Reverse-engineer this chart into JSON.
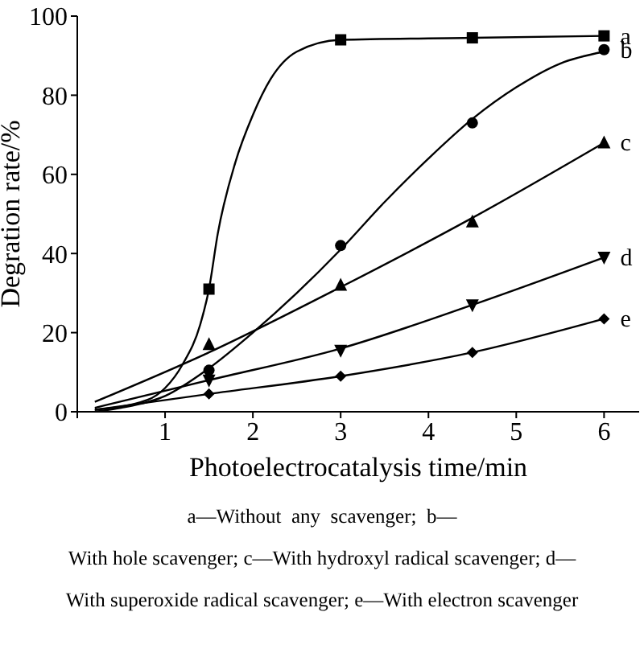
{
  "chart_data": {
    "type": "scatter",
    "xlabel": "Photoelectrocatalysis time/min",
    "ylabel": "Degration rate/%",
    "xlim": [
      0,
      6.4
    ],
    "xticks": [
      {
        "value": 0,
        "label": null
      },
      1,
      2,
      3,
      4,
      5,
      6
    ],
    "ylim": [
      0,
      100
    ],
    "yticks": [
      0,
      20,
      40,
      60,
      80,
      100
    ],
    "grid": false,
    "legend": false,
    "annotations": [
      "a—Without  any  scavenger;  b—",
      "With hole scavenger; c—With hydroxyl radical scavenger; d—",
      "With superoxide radical scavenger; e—With electron scavenger"
    ],
    "series": [
      {
        "name": "a",
        "marker": "square",
        "color": "#000000",
        "x": [
          1.5,
          3,
          4.5,
          6
        ],
        "values": [
          31,
          94,
          94.5,
          95
        ]
      },
      {
        "name": "b",
        "marker": "circle",
        "color": "#000000",
        "x": [
          1.5,
          3,
          4.5,
          6
        ],
        "values": [
          10.5,
          42,
          73,
          91.5
        ]
      },
      {
        "name": "c",
        "marker": "triangle",
        "color": "#000000",
        "x": [
          1.5,
          3,
          4.5,
          6
        ],
        "values": [
          17,
          32,
          48,
          68
        ]
      },
      {
        "name": "d",
        "marker": "triangle-down",
        "color": "#000000",
        "x": [
          1.5,
          3,
          4.5,
          6
        ],
        "values": [
          8,
          15.5,
          27,
          39
        ]
      },
      {
        "name": "e",
        "marker": "diamond",
        "color": "#000000",
        "x": [
          1.5,
          3,
          4.5,
          6
        ],
        "values": [
          4.5,
          9,
          15,
          23.5
        ]
      },
      {
        "type": "line",
        "marker": "none",
        "color": "#000000",
        "x": [
          0.2,
          0.8,
          1.0,
          1.2,
          1.4,
          1.5,
          1.6,
          1.8,
          2.0,
          2.2,
          2.5,
          3,
          4.5,
          6
        ],
        "values": [
          0.5,
          3,
          6,
          12,
          22,
          31,
          45,
          63,
          75,
          84,
          91,
          94,
          94.5,
          95
        ]
      },
      {
        "type": "line",
        "marker": "none",
        "color": "#000000",
        "x": [
          0.2,
          0.5,
          1,
          1.5,
          2,
          2.5,
          3,
          3.5,
          4,
          4.5,
          5,
          5.5,
          6
        ],
        "values": [
          0,
          1,
          4,
          11,
          20,
          30,
          41,
          53,
          64,
          74,
          82,
          88,
          91
        ]
      },
      {
        "type": "line",
        "marker": "none",
        "color": "#000000",
        "x": [
          0.2,
          1.5,
          3,
          4.5,
          6
        ],
        "values": [
          2.5,
          15,
          31.5,
          49,
          68
        ]
      },
      {
        "type": "line",
        "marker": "none",
        "color": "#000000",
        "x": [
          0.2,
          1.5,
          3,
          4.5,
          6
        ],
        "values": [
          1,
          8,
          16,
          27,
          39
        ]
      },
      {
        "type": "line",
        "marker": "none",
        "color": "#000000",
        "x": [
          0.2,
          1.5,
          3,
          4.5,
          6
        ],
        "values": [
          0.5,
          4.5,
          9,
          15,
          23.5
        ]
      }
    ]
  }
}
